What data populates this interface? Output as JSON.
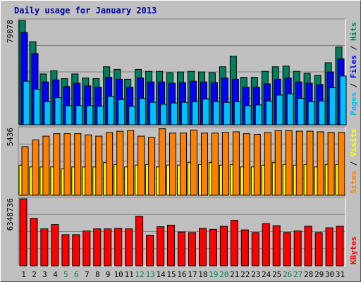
{
  "title": "Daily usage for January 2013",
  "colors": {
    "hits": "#00805c",
    "files": "#0000ff",
    "pages": "#00c0ff",
    "visits": "#ffff00",
    "sites": "#ff8000",
    "kbytes": "#ff0000",
    "weekend_label": "#00805c",
    "weekday_label": "#000000",
    "title": "#0000a0"
  },
  "chart_data": [
    {
      "type": "bar",
      "panel": "top",
      "ymax_label": "79078",
      "ylim": [
        0,
        79078
      ],
      "categories": [
        "1",
        "2",
        "3",
        "4",
        "5",
        "6",
        "7",
        "8",
        "9",
        "10",
        "11",
        "12",
        "13",
        "14",
        "15",
        "16",
        "17",
        "18",
        "19",
        "20",
        "21",
        "22",
        "23",
        "24",
        "25",
        "26",
        "27",
        "28",
        "29",
        "30",
        "31"
      ],
      "weekend_days": [
        "5",
        "6",
        "12",
        "13",
        "19",
        "20",
        "26",
        "27"
      ],
      "series": [
        {
          "name": "Hits",
          "values": [
            79000,
            63000,
            38500,
            41000,
            35000,
            38500,
            35500,
            35000,
            44000,
            42000,
            34500,
            42000,
            40500,
            40500,
            39500,
            40000,
            40500,
            40000,
            39500,
            44000,
            52000,
            36000,
            36000,
            40500,
            44000,
            44500,
            40500,
            39000,
            37500,
            47000,
            59000
          ]
        },
        {
          "name": "Files",
          "values": [
            70000,
            54000,
            32500,
            34000,
            29000,
            31500,
            29500,
            28500,
            36000,
            34500,
            28500,
            35500,
            32500,
            32500,
            31500,
            32000,
            33000,
            32500,
            32000,
            35500,
            34500,
            28500,
            28500,
            31000,
            34500,
            35500,
            32500,
            31500,
            30500,
            40000,
            50000
          ]
        },
        {
          "name": "Pages",
          "values": [
            33000,
            27000,
            17500,
            20500,
            14500,
            14500,
            14500,
            14000,
            21500,
            19000,
            14000,
            20000,
            17000,
            15500,
            16500,
            17000,
            17500,
            19500,
            17500,
            17000,
            17500,
            14500,
            15000,
            18000,
            22500,
            23500,
            20000,
            17500,
            18000,
            28000,
            37000
          ]
        }
      ],
      "legend": [
        "Pages",
        "Files",
        "Hits"
      ],
      "legend_separator": " / "
    },
    {
      "type": "bar",
      "panel": "middle",
      "ymax_label": "5436",
      "ylim": [
        0,
        5436
      ],
      "series": [
        {
          "name": "Visits",
          "values": [
            2450,
            2300,
            2300,
            2300,
            2150,
            2300,
            2300,
            2300,
            2650,
            2500,
            2300,
            2450,
            2500,
            2300,
            2450,
            2450,
            2650,
            2500,
            2650,
            2450,
            2500,
            2300,
            2300,
            2450,
            2650,
            2500,
            2450,
            2500,
            2300,
            2500,
            2500
          ]
        },
        {
          "name": "Sites",
          "values": [
            3950,
            4500,
            4800,
            5000,
            5000,
            5000,
            4900,
            4800,
            5100,
            5200,
            5250,
            4800,
            4700,
            5400,
            5050,
            5050,
            5300,
            5050,
            5050,
            5100,
            5150,
            5000,
            4950,
            5100,
            5250,
            5250,
            5200,
            5200,
            5150,
            5100,
            5100
          ]
        }
      ],
      "legend": [
        "Sites",
        "Visits"
      ],
      "legend_separator": " / "
    },
    {
      "type": "bar",
      "panel": "bottom",
      "ymax_label": "6348736",
      "ylim": [
        0,
        6348736
      ],
      "series": [
        {
          "name": "KBytes",
          "values": [
            6348736,
            4500000,
            3500000,
            3900000,
            2950000,
            2950000,
            3300000,
            3500000,
            3500000,
            3550000,
            3500000,
            4700000,
            2900000,
            3700000,
            3850000,
            3200000,
            3150000,
            3550000,
            3450000,
            3750000,
            4300000,
            3400000,
            3150000,
            4000000,
            3800000,
            3150000,
            3300000,
            3750000,
            3150000,
            3600000,
            3750000
          ]
        }
      ],
      "legend": [
        "KBytes"
      ]
    }
  ]
}
